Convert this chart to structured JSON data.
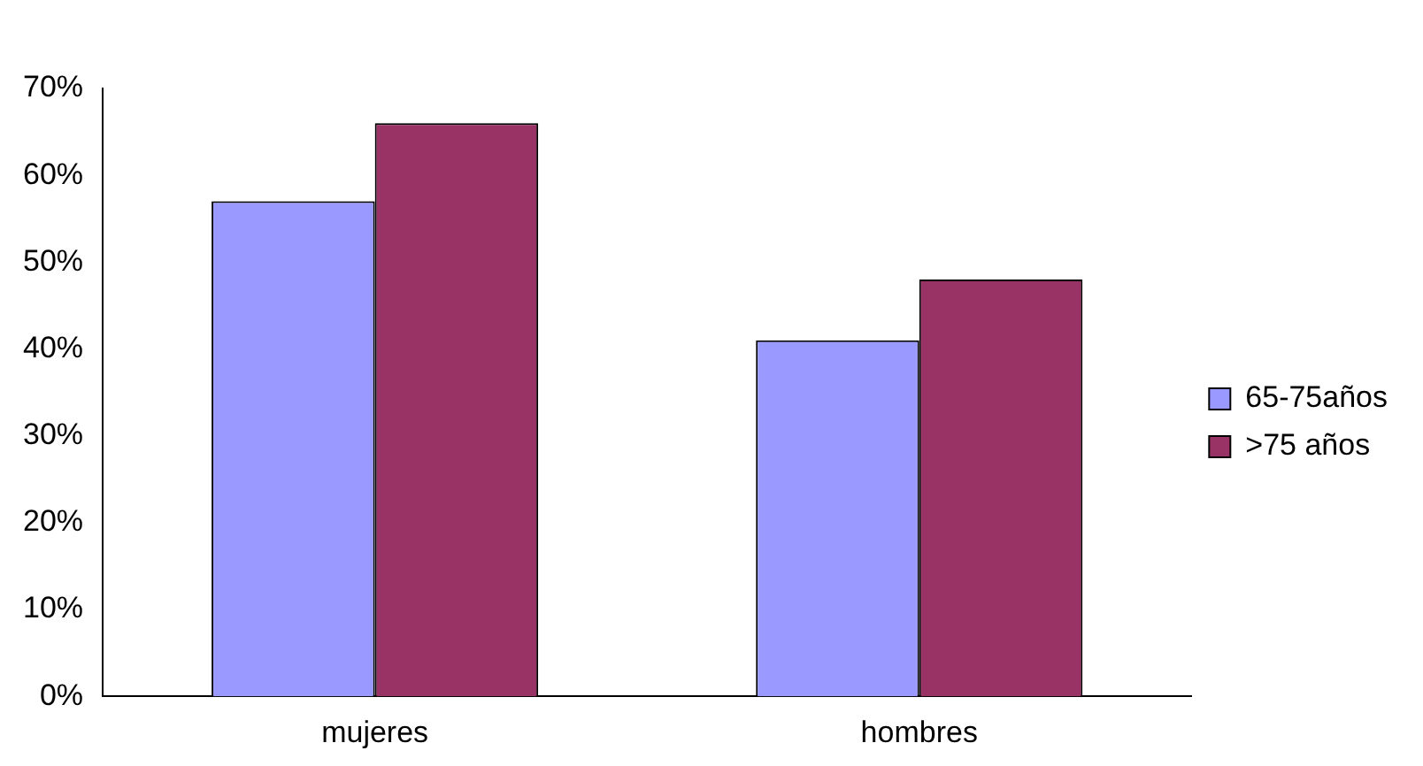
{
  "chart_data": {
    "type": "bar",
    "categories": [
      "mujeres",
      "hombres"
    ],
    "series": [
      {
        "name": "65-75años",
        "color": "#9999ff",
        "values": [
          57,
          41
        ]
      },
      {
        "name": ">75 años",
        "color": "#993366",
        "values": [
          66,
          48
        ]
      }
    ],
    "ylim": [
      0,
      70
    ],
    "yticks": [
      {
        "value": 0,
        "label": "0%"
      },
      {
        "value": 10,
        "label": "10%"
      },
      {
        "value": 20,
        "label": "20%"
      },
      {
        "value": 30,
        "label": "30%"
      },
      {
        "value": 40,
        "label": "40%"
      },
      {
        "value": 50,
        "label": "50%"
      },
      {
        "value": 60,
        "label": "60%"
      },
      {
        "value": 70,
        "label": "70%"
      }
    ],
    "grid": false,
    "legend": "right"
  }
}
